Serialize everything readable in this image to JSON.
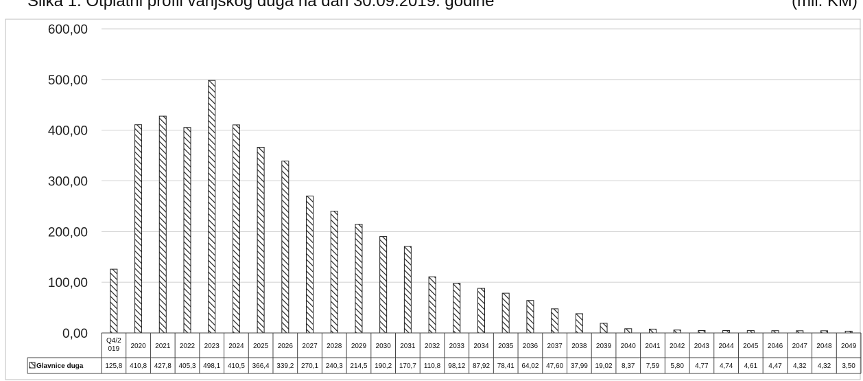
{
  "title": "Slika 1. Otplatni profil vanjskog duga na dan 30.09.2019. godine",
  "unit": "(mil. KM)",
  "chart_data": {
    "type": "bar",
    "title": "Slika 1. Otplatni profil vanjskog duga na dan 30.09.2019. godine",
    "unit": "(mil. KM)",
    "categories": [
      "Q4/2019",
      "2020",
      "2021",
      "2022",
      "2023",
      "2024",
      "2025",
      "2026",
      "2027",
      "2028",
      "2029",
      "2030",
      "2031",
      "2032",
      "2033",
      "2034",
      "2035",
      "2036",
      "2037",
      "2038",
      "2039",
      "2040",
      "2041",
      "2042",
      "2043",
      "2044",
      "2045",
      "2046",
      "2047",
      "2048",
      "2049"
    ],
    "category_labels": [
      "Q4/2\n019",
      "2020",
      "2021",
      "2022",
      "2023",
      "2024",
      "2025",
      "2026",
      "2027",
      "2028",
      "2029",
      "2030",
      "2031",
      "2032",
      "2033",
      "2034",
      "2035",
      "2036",
      "2037",
      "2038",
      "2039",
      "2040",
      "2041",
      "2042",
      "2043",
      "2044",
      "2045",
      "2046",
      "2047",
      "2048",
      "2049"
    ],
    "series": [
      {
        "name": "Glavnice duga",
        "values": [
          125.8,
          410.8,
          427.8,
          405.3,
          498.1,
          410.5,
          366.4,
          339.2,
          270.1,
          240.3,
          214.5,
          190.2,
          170.7,
          110.8,
          98.12,
          87.92,
          78.41,
          64.02,
          47.6,
          37.99,
          19.02,
          8.37,
          7.59,
          5.8,
          4.77,
          4.74,
          4.61,
          4.47,
          4.32,
          4.32,
          3.5
        ],
        "value_labels": [
          "125,8",
          "410,8",
          "427,8",
          "405,3",
          "498,1",
          "410,5",
          "366,4",
          "339,2",
          "270,1",
          "240,3",
          "214,5",
          "190,2",
          "170,7",
          "110,8",
          "98,12",
          "87,92",
          "78,41",
          "64,02",
          "47,60",
          "37,99",
          "19,02",
          "8,37",
          "7,59",
          "5,80",
          "4,77",
          "4,74",
          "4,61",
          "4,47",
          "4,32",
          "4,32",
          "3,50"
        ]
      }
    ],
    "ylim": [
      0,
      600
    ],
    "yticks": [
      0,
      100,
      200,
      300,
      400,
      500,
      600
    ],
    "ytick_labels": [
      "0,00",
      "100,00",
      "200,00",
      "300,00",
      "400,00",
      "500,00",
      "600,00"
    ],
    "grid": true,
    "legend": "data-table",
    "colors": {
      "bar_stroke": "#222222",
      "bar_hatch": "#222222",
      "grid": "#cfcfcf",
      "border": "#bdbdbd"
    }
  }
}
